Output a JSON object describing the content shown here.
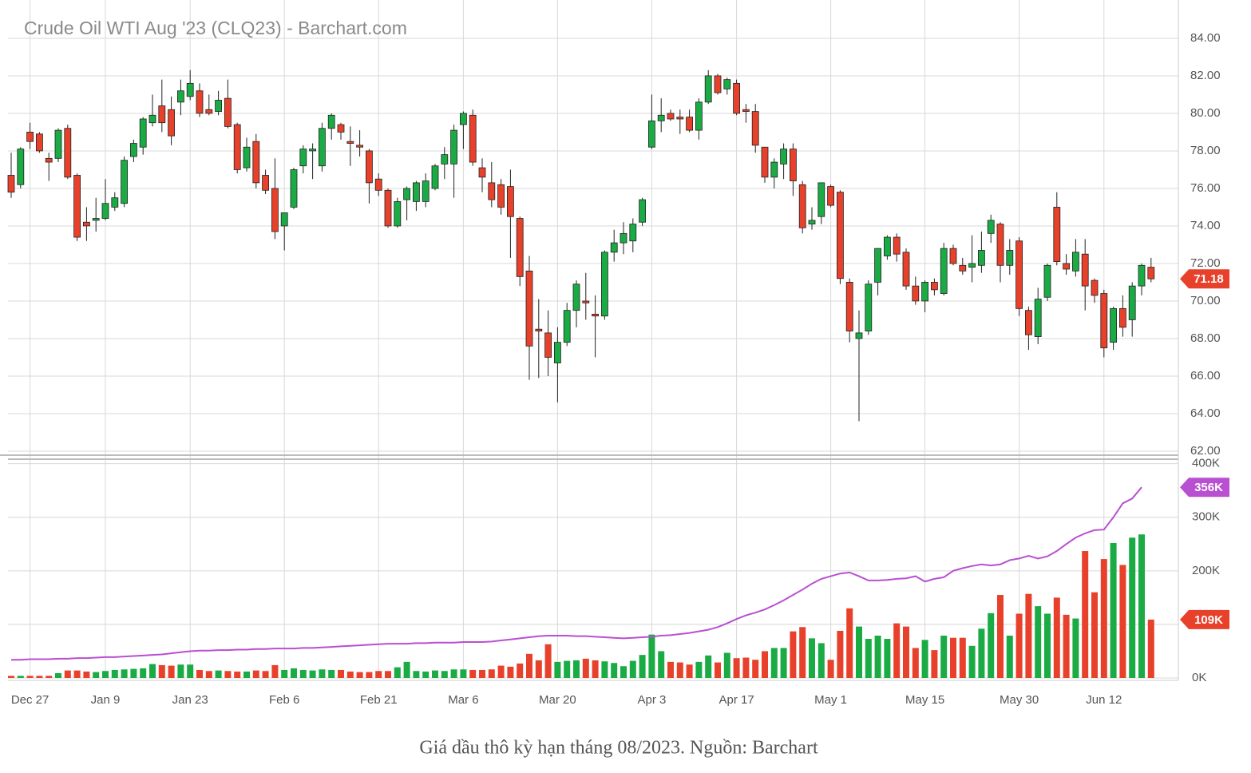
{
  "chart_data": {
    "type": "candlestick",
    "title": "Crude Oil WTI Aug '23 (CLQ23) - Barchart.com",
    "categories": [
      null,
      null,
      "Dec 27",
      null,
      null,
      null,
      null,
      null,
      null,
      null,
      "Jan 9",
      null,
      null,
      null,
      null,
      null,
      null,
      null,
      null,
      "Jan 23",
      null,
      null,
      null,
      null,
      null,
      null,
      null,
      null,
      null,
      "Feb 6",
      null,
      null,
      null,
      null,
      null,
      null,
      null,
      null,
      null,
      "Feb 21",
      null,
      null,
      null,
      null,
      null,
      null,
      null,
      null,
      "Mar 6",
      null,
      null,
      null,
      null,
      null,
      null,
      null,
      null,
      null,
      "Mar 20",
      null,
      null,
      null,
      null,
      null,
      null,
      null,
      null,
      null,
      "Apr 3",
      null,
      null,
      null,
      null,
      null,
      null,
      null,
      null,
      "Apr 17",
      null,
      null,
      null,
      null,
      null,
      null,
      null,
      null,
      null,
      "May 1",
      null,
      null,
      null,
      null,
      null,
      null,
      null,
      null,
      null,
      "May 15",
      null,
      null,
      null,
      null,
      null,
      null,
      null,
      null,
      null,
      "May 30",
      null,
      null,
      null,
      null,
      null,
      null,
      null,
      null,
      "Jun 12",
      null,
      null,
      null,
      null,
      null
    ],
    "open": [
      76.7,
      76.2,
      79.0,
      78.9,
      77.6,
      77.6,
      79.2,
      76.7,
      74.2,
      74.3,
      74.4,
      75.0,
      75.2,
      77.7,
      78.2,
      79.5,
      80.4,
      80.2,
      80.6,
      80.9,
      81.2,
      80.2,
      80.1,
      80.8,
      79.4,
      77.1,
      78.5,
      76.7,
      76.0,
      74.0,
      75.0,
      77.2,
      78.0,
      77.2,
      79.2,
      79.4,
      78.5,
      78.3,
      78.0,
      76.5,
      75.9,
      74.0,
      75.4,
      75.3,
      75.3,
      76.0,
      77.3,
      77.3,
      79.4,
      79.9,
      77.1,
      76.3,
      76.2,
      76.1,
      74.4,
      71.6,
      68.5,
      68.3,
      66.7,
      67.8,
      69.5,
      70.0,
      69.3,
      69.2,
      72.6,
      73.1,
      73.2,
      74.2,
      78.2,
      79.6,
      80.0,
      79.8,
      79.8,
      79.1,
      80.6,
      82.0,
      81.3,
      81.6,
      80.2,
      80.1,
      78.2,
      76.6,
      77.3,
      78.1,
      76.2,
      74.1,
      74.5,
      76.1,
      75.8,
      71.0,
      68.0,
      68.4,
      71.0,
      72.4,
      73.4,
      72.6,
      70.8,
      70.0,
      71.0,
      70.4,
      72.8,
      71.9,
      71.8,
      71.9,
      73.6,
      74.1,
      71.9,
      73.2,
      69.5,
      68.1,
      70.2,
      75.0,
      72.0,
      71.6,
      72.5,
      71.1,
      70.4,
      67.8,
      69.6,
      69.0,
      70.8,
      71.8
    ],
    "high": [
      77.9,
      78.2,
      79.5,
      79.0,
      77.9,
      79.2,
      79.4,
      76.8,
      75.0,
      75.5,
      76.5,
      75.8,
      77.7,
      78.6,
      79.8,
      81.0,
      81.8,
      80.9,
      81.8,
      82.3,
      81.6,
      81.0,
      81.2,
      81.8,
      79.5,
      78.7,
      78.9,
      77.0,
      77.6,
      74.7,
      77.1,
      78.3,
      78.4,
      79.5,
      80.0,
      79.5,
      79.3,
      79.1,
      78.1,
      76.8,
      76.0,
      75.5,
      76.1,
      76.4,
      76.8,
      77.3,
      78.2,
      79.4,
      80.1,
      80.2,
      77.6,
      77.4,
      76.5,
      77.0,
      74.5,
      72.4,
      70.1,
      69.5,
      68.6,
      69.9,
      71.1,
      71.5,
      70.3,
      72.7,
      73.8,
      74.2,
      74.4,
      75.5,
      81.0,
      80.8,
      80.2,
      80.2,
      80.2,
      80.8,
      82.3,
      82.1,
      81.9,
      81.8,
      80.5,
      80.5,
      78.2,
      77.6,
      78.4,
      78.4,
      76.4,
      75.0,
      76.3,
      76.2,
      75.9,
      71.2,
      69.5,
      71.1,
      72.8,
      73.5,
      73.6,
      72.8,
      71.3,
      71.1,
      71.2,
      73.1,
      73.0,
      72.3,
      73.5,
      73.7,
      74.6,
      74.2,
      73.3,
      73.4,
      69.7,
      70.7,
      72.0,
      75.8,
      72.5,
      73.3,
      73.3,
      71.2,
      70.6,
      69.7,
      70.3,
      71.0,
      72.0,
      72.3
    ],
    "low": [
      75.5,
      76.0,
      78.1,
      77.9,
      76.4,
      77.4,
      76.5,
      73.2,
      73.2,
      73.7,
      74.3,
      74.8,
      75.0,
      77.4,
      77.8,
      79.3,
      79.0,
      78.3,
      79.9,
      80.7,
      79.8,
      79.9,
      79.9,
      79.2,
      76.8,
      76.9,
      76.0,
      75.7,
      73.3,
      72.7,
      74.9,
      76.8,
      76.5,
      76.9,
      78.6,
      78.6,
      77.2,
      77.7,
      75.2,
      75.6,
      73.9,
      73.9,
      74.3,
      74.8,
      75.0,
      75.9,
      76.5,
      75.5,
      78.1,
      77.2,
      75.8,
      75.0,
      74.6,
      72.3,
      70.8,
      65.8,
      65.9,
      66.0,
      64.6,
      67.6,
      68.6,
      69.0,
      67.0,
      69.0,
      72.1,
      72.5,
      72.6,
      74.0,
      78.1,
      79.0,
      79.6,
      78.9,
      79.0,
      78.6,
      80.5,
      81.0,
      81.0,
      79.9,
      79.5,
      77.9,
      76.3,
      76.0,
      76.5,
      75.6,
      73.6,
      73.8,
      74.1,
      75.0,
      70.9,
      67.8,
      63.6,
      68.2,
      70.3,
      72.2,
      72.1,
      70.6,
      69.8,
      69.4,
      70.3,
      70.3,
      71.9,
      71.4,
      71.0,
      71.5,
      73.1,
      71.0,
      71.4,
      69.2,
      67.4,
      67.7,
      70.0,
      71.9,
      71.4,
      71.3,
      69.5,
      69.9,
      67.0,
      67.4,
      68.1,
      68.1,
      70.3,
      71.0
    ],
    "close": [
      75.8,
      78.1,
      78.5,
      78.0,
      77.4,
      79.1,
      76.6,
      73.4,
      74.0,
      74.4,
      75.2,
      75.5,
      77.5,
      78.4,
      79.7,
      79.9,
      79.5,
      78.8,
      81.2,
      81.6,
      80.0,
      80.0,
      80.7,
      79.3,
      77.0,
      78.2,
      76.3,
      75.9,
      73.7,
      74.7,
      77.0,
      78.1,
      78.1,
      79.2,
      79.9,
      79.0,
      78.4,
      78.2,
      76.3,
      75.9,
      74.0,
      75.3,
      76.0,
      76.3,
      76.4,
      77.2,
      77.8,
      79.1,
      80.0,
      77.4,
      76.6,
      75.4,
      75.0,
      74.5,
      71.3,
      67.6,
      68.4,
      67.0,
      67.8,
      69.5,
      70.9,
      69.9,
      69.2,
      72.6,
      73.1,
      73.6,
      74.1,
      75.4,
      79.6,
      79.9,
      79.7,
      79.7,
      79.1,
      80.6,
      82.0,
      81.1,
      81.8,
      80.0,
      80.1,
      78.3,
      76.6,
      77.4,
      78.1,
      76.4,
      73.9,
      74.3,
      76.3,
      75.1,
      71.2,
      68.4,
      68.3,
      70.9,
      72.8,
      73.4,
      72.5,
      70.8,
      70.0,
      71.0,
      70.6,
      72.8,
      72.0,
      71.6,
      72.0,
      72.7,
      74.3,
      71.9,
      72.7,
      69.6,
      68.2,
      70.1,
      71.9,
      72.1,
      71.7,
      72.6,
      70.8,
      70.3,
      67.5,
      69.6,
      68.6,
      70.8,
      71.9,
      71.18
    ],
    "up_color": "#1aab45",
    "down_color": "#e8412b",
    "ylim": [
      61.87,
      86.04
    ],
    "yticks": [
      {
        "value": 62,
        "label": "62.00"
      },
      {
        "value": 64,
        "label": "64.00"
      },
      {
        "value": 66,
        "label": "66.00"
      },
      {
        "value": 68,
        "label": "68.00"
      },
      {
        "value": 70,
        "label": "70.00"
      },
      {
        "value": 72,
        "label": "72.00"
      },
      {
        "value": 74,
        "label": "74.00"
      },
      {
        "value": 76,
        "label": "76.00"
      },
      {
        "value": 78,
        "label": "78.00"
      },
      {
        "value": 80,
        "label": "80.00"
      },
      {
        "value": 82,
        "label": "82.00"
      },
      {
        "value": 84,
        "label": "84.00"
      }
    ],
    "price_marker": {
      "value": 71.18,
      "label": "71.18"
    },
    "grid": true,
    "volume": {
      "values": [
        4000,
        4000,
        4000,
        4000,
        4000,
        9000,
        14000,
        14000,
        12000,
        11000,
        13000,
        15000,
        16000,
        17000,
        18000,
        26000,
        24000,
        23000,
        25000,
        25000,
        15000,
        13000,
        14000,
        13000,
        12000,
        12000,
        14000,
        13000,
        24000,
        15000,
        18000,
        15000,
        14000,
        16000,
        15000,
        15000,
        12000,
        11000,
        11000,
        13000,
        13000,
        20000,
        30000,
        13000,
        12000,
        14000,
        13000,
        16000,
        16000,
        15000,
        15000,
        16000,
        23000,
        21000,
        27000,
        45000,
        33000,
        63000,
        30000,
        32000,
        33000,
        36000,
        33000,
        31000,
        28000,
        22000,
        32000,
        43000,
        81000,
        50000,
        30000,
        29000,
        25000,
        30000,
        42000,
        29000,
        47000,
        37000,
        38000,
        34000,
        50000,
        56000,
        56000,
        87000,
        95000,
        74000,
        65000,
        34000,
        88000,
        130000,
        96000,
        73000,
        79000,
        73000,
        102000,
        96000,
        56000,
        71000,
        52000,
        79000,
        75000,
        75000,
        60000,
        92000,
        121000,
        155000,
        79000,
        120000,
        157000,
        134000,
        120000,
        150000,
        118000,
        111000,
        237000,
        160000,
        222000,
        252000,
        211000,
        262000,
        268000,
        109000
      ],
      "ylim": [
        0,
        404000
      ],
      "yticks": [
        {
          "value": 0,
          "label": "0K"
        },
        {
          "value": 100000,
          "label": "100K"
        },
        {
          "value": 200000,
          "label": "200K"
        },
        {
          "value": 300000,
          "label": "300K"
        },
        {
          "value": 400000,
          "label": "400K"
        }
      ],
      "marker": {
        "value": 109000,
        "label": "109K"
      }
    },
    "open_interest": {
      "color": "#b94fd1",
      "values": [
        34000,
        34000,
        35000,
        35000,
        35000,
        36000,
        36000,
        37000,
        37000,
        38000,
        39000,
        39000,
        40000,
        41000,
        42000,
        43000,
        44000,
        46000,
        48000,
        50000,
        51000,
        51000,
        52000,
        52000,
        53000,
        53000,
        54000,
        54000,
        55000,
        55000,
        55000,
        56000,
        56000,
        57000,
        58000,
        59000,
        60000,
        61000,
        62000,
        63000,
        64000,
        64000,
        64000,
        65000,
        65000,
        66000,
        66000,
        66000,
        67000,
        67000,
        67000,
        68000,
        70000,
        72000,
        74000,
        76000,
        78000,
        79000,
        79000,
        79000,
        78000,
        78000,
        77000,
        76000,
        75000,
        74000,
        75000,
        76000,
        77000,
        79000,
        80000,
        82000,
        84000,
        87000,
        90000,
        95000,
        102000,
        110000,
        117000,
        122000,
        128000,
        136000,
        145000,
        155000,
        165000,
        176000,
        185000,
        190000,
        195000,
        197000,
        190000,
        182000,
        182000,
        183000,
        185000,
        186000,
        190000,
        180000,
        185000,
        188000,
        200000,
        205000,
        209000,
        212000,
        210000,
        212000,
        220000,
        223000,
        228000,
        223000,
        227000,
        237000,
        250000,
        262000,
        270000,
        276000,
        277000,
        300000,
        326000,
        335000,
        356000,
        null
      ],
      "marker": {
        "value": 356000,
        "label": "356K"
      }
    }
  },
  "caption": "Giá dầu thô kỳ hạn tháng 08/2023. Nguồn: Barchart"
}
